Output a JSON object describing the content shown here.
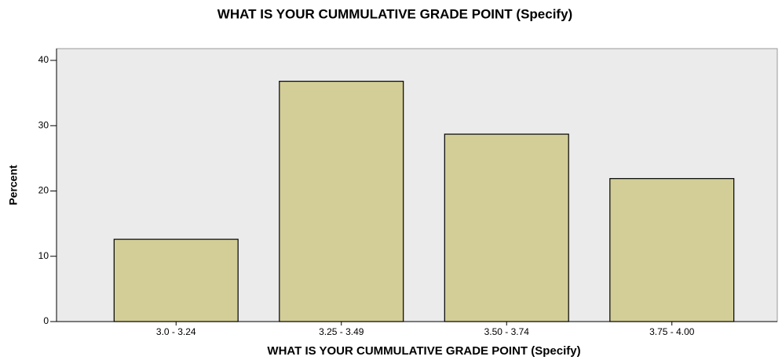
{
  "chart_data": {
    "type": "bar",
    "title": "WHAT IS YOUR CUMMULATIVE GRADE POINT (Specify)",
    "x_label": "WHAT IS YOUR CUMMULATIVE GRADE POINT (Specify)",
    "y_label": "Percent",
    "categories": [
      "3.0 - 3.24",
      "3.25 - 3.49",
      "3.50 - 3.74",
      "3.75 - 4.00"
    ],
    "values": [
      12.6,
      36.8,
      28.7,
      21.9
    ],
    "color": "#d3ce97",
    "ylim": [
      0,
      41.8
    ],
    "yticks": [
      0,
      10,
      20,
      30,
      40
    ],
    "grid": false
  }
}
